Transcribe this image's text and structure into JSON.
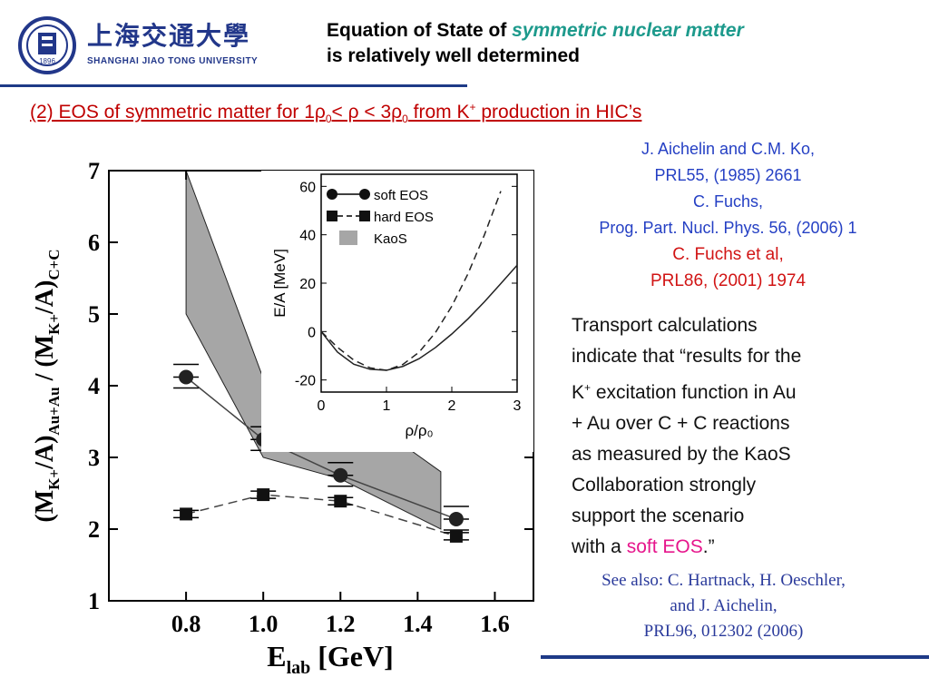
{
  "header": {
    "logo_cn": "上海交通大學",
    "logo_en": "SHANGHAI  JIAO TONG  UNIVERSITY",
    "logo_year": "1896",
    "title_part1": "Equation of State of ",
    "title_highlight": "symmetric nuclear matter",
    "title_line2": "is relatively well determined",
    "accent_color": "#1e3a87"
  },
  "subtitle": {
    "text_a": "(2) EOS of symmetric matter for 1ρ",
    "sub1": "0",
    "text_b": "< ρ < 3ρ",
    "sub2": "0",
    "text_c": " from K",
    "sup": "+",
    "text_d": " production in HIC’s"
  },
  "refs": {
    "line1": "J. Aichelin and C.M. Ko,",
    "line2": "PRL55, (1985) 2661",
    "line3": "C. Fuchs,",
    "line4": "Prog. Part. Nucl. Phys. 56, (2006) 1",
    "line5": "C. Fuchs et al,",
    "line6": "PRL86, (2001) 1974"
  },
  "body": {
    "l1": "Transport calculations",
    "l2": "indicate that “results for the",
    "l3a": "K",
    "l3sup": "+",
    "l3b": " excitation function in Au",
    "l4": "+ Au over C + C reactions",
    "l5": "as measured by the KaoS",
    "l6": "Collaboration strongly",
    "l7": "support the scenario",
    "l8a": "with a ",
    "l8soft": "soft EOS",
    "l8b": ".”"
  },
  "seealso": {
    "l1": "See also: C. Hartnack, H. Oeschler,",
    "l2": "and J. Aichelin,",
    "l3": "PRL96, 012302 (2006)"
  },
  "chart_data": [
    {
      "type": "scatter",
      "xlabel_main": "E",
      "xlabel_sub": "lab",
      "xlabel_unit": " [GeV]",
      "ylabel": "(M_K+/A)_Au+Au / (M_K+/A)_C+C",
      "ylabel_parts": {
        "a": "(M",
        "a_sub": "K+",
        "b": "/A)",
        "b_sub": "Au+Au",
        "c": " / (M",
        "c_sub": "K+",
        "d": "/A)",
        "d_sub": "C+C"
      },
      "xlim": [
        0.6,
        1.7
      ],
      "ylim": [
        1,
        7
      ],
      "xticks": [
        "0.8",
        "1.0",
        "1.2",
        "1.4",
        "1.6"
      ],
      "yticks": [
        "1",
        "2",
        "3",
        "4",
        "5",
        "6",
        "7"
      ],
      "series": [
        {
          "name": "soft EOS",
          "x": [
            0.8,
            1.0,
            1.2,
            1.5
          ],
          "y": [
            4.12,
            3.25,
            2.75,
            2.14
          ]
        },
        {
          "name": "hard EOS",
          "x": [
            0.8,
            1.0,
            1.2,
            1.5
          ],
          "y": [
            2.21,
            2.48,
            2.39,
            1.9
          ]
        }
      ],
      "kaos_band": {
        "name": "KaoS",
        "x": [
          0.8,
          1.0,
          1.2,
          1.46
        ],
        "upper": [
          7.0,
          4.1,
          3.8,
          2.8
        ],
        "lower": [
          5.0,
          3.0,
          2.7,
          2.0
        ]
      }
    },
    {
      "type": "line",
      "xlabel": "ρ/ρ₀",
      "ylabel": "E/A [MeV]",
      "xlim": [
        0,
        3
      ],
      "ylim": [
        -25,
        65
      ],
      "xticks": [
        "0",
        "1",
        "2",
        "3"
      ],
      "yticks": [
        "-20",
        "0",
        "20",
        "40",
        "60"
      ],
      "legend": [
        "soft EOS",
        "hard EOS",
        "KaoS"
      ],
      "series": [
        {
          "name": "soft EOS",
          "x": [
            0,
            0.25,
            0.5,
            0.75,
            1.0,
            1.25,
            1.5,
            1.75,
            2.0,
            2.25,
            2.5,
            2.75,
            3.0
          ],
          "y": [
            0,
            -8.5,
            -13.5,
            -15.6,
            -16,
            -14.4,
            -11.2,
            -6.6,
            -1,
            5.3,
            12.3,
            19.8,
            27.4
          ]
        },
        {
          "name": "hard EOS",
          "x": [
            0,
            0.25,
            0.5,
            0.75,
            1.0,
            1.25,
            1.5,
            1.75,
            2.0,
            2.25,
            2.5,
            2.75
          ],
          "y": [
            0,
            -6.5,
            -11.8,
            -15,
            -16,
            -13.6,
            -8.5,
            -0.4,
            10.5,
            24,
            40,
            58
          ]
        }
      ]
    }
  ]
}
